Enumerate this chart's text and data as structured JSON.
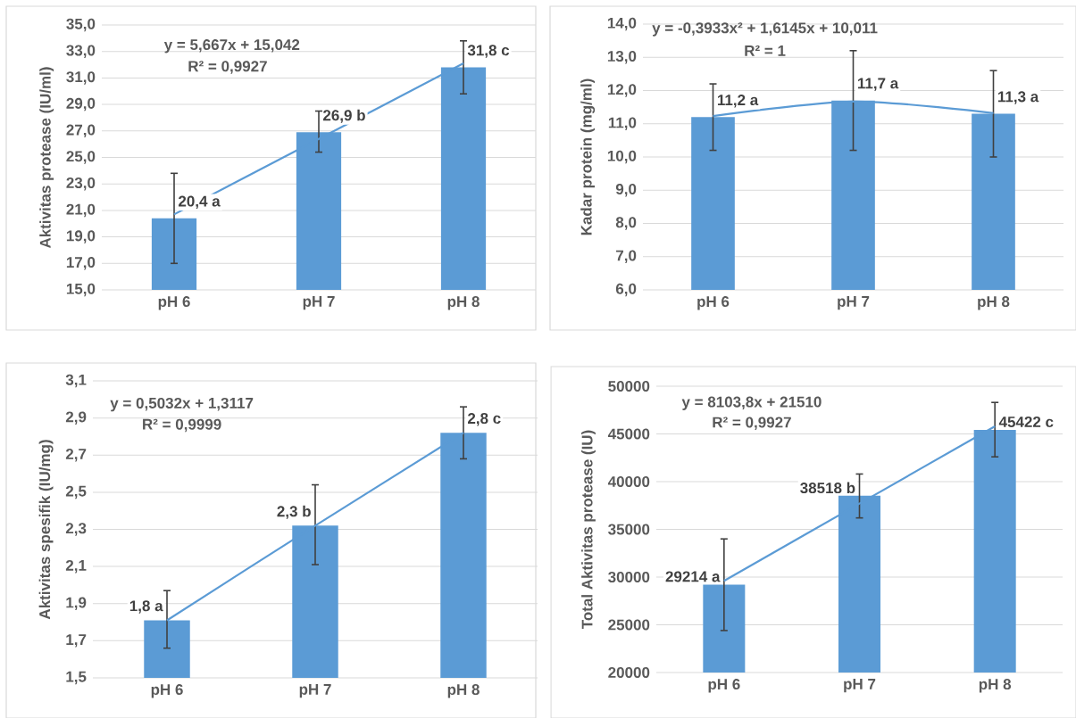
{
  "chart_data": [
    {
      "type": "bar",
      "ylabel": "Aktivitas protease (IU/ml)",
      "categories": [
        "pH 6",
        "pH 7",
        "pH 8"
      ],
      "ylim": [
        15,
        35
      ],
      "yticks": [
        {
          "value": 15,
          "label": "15,0"
        },
        {
          "value": 17,
          "label": "17,0"
        },
        {
          "value": 19,
          "label": "19,0"
        },
        {
          "value": 21,
          "label": "21,0"
        },
        {
          "value": 23,
          "label": "23,0"
        },
        {
          "value": 25,
          "label": "25,0"
        },
        {
          "value": 27,
          "label": "27,0"
        },
        {
          "value": 29,
          "label": "29,0"
        },
        {
          "value": 31,
          "label": "31,0"
        },
        {
          "value": 33,
          "label": "33,0"
        },
        {
          "value": 35,
          "label": "35,0"
        }
      ],
      "grid": "y",
      "annotations": [
        "y = 5,667x + 15,042",
        "R² = 0,9927"
      ],
      "series": [
        {
          "color": "#5b9bd5",
          "values": [
            20.4,
            26.9,
            31.8
          ],
          "errors": [
            [
              17.0,
              23.8
            ],
            [
              25.4,
              28.5
            ],
            [
              29.8,
              33.8
            ]
          ],
          "value_labels": [
            "20,4 a",
            "26,9 b",
            "31,8 c"
          ]
        },
        {
          "type": "line",
          "color": "#5b9bd5",
          "x": [
            "pH 6",
            "pH 7",
            "pH 8"
          ],
          "values": [
            20.7,
            26.4,
            32.1
          ]
        }
      ]
    },
    {
      "type": "bar",
      "ylabel": "Kadar protein (mg/ml)",
      "categories": [
        "pH 6",
        "pH 7",
        "pH 8"
      ],
      "ylim": [
        6,
        14
      ],
      "yticks": [
        {
          "value": 6,
          "label": "6,0"
        },
        {
          "value": 7,
          "label": "7,0"
        },
        {
          "value": 8,
          "label": "8,0"
        },
        {
          "value": 9,
          "label": "9,0"
        },
        {
          "value": 10,
          "label": "10,0"
        },
        {
          "value": 11,
          "label": "11,0"
        },
        {
          "value": 12,
          "label": "12,0"
        },
        {
          "value": 13,
          "label": "13,0"
        },
        {
          "value": 14,
          "label": "14,0"
        }
      ],
      "grid": "y",
      "annotations": [
        "y = -0,3933x² + 1,6145x + 10,011",
        "R² = 1"
      ],
      "series": [
        {
          "color": "#5b9bd5",
          "values": [
            11.2,
            11.7,
            11.3
          ],
          "errors": [
            [
              10.2,
              12.2
            ],
            [
              10.2,
              13.2
            ],
            [
              10.0,
              12.6
            ]
          ],
          "value_labels": [
            "11,2 a",
            "11,7 a",
            "11,3 a"
          ]
        },
        {
          "type": "line",
          "color": "#5b9bd5",
          "x": [
            "pH 6",
            "pH 7",
            "pH 8"
          ],
          "values": [
            11.23,
            11.67,
            11.32
          ]
        }
      ]
    },
    {
      "type": "bar",
      "ylabel": "Aktivitas spesifik (IU/mg)",
      "categories": [
        "pH 6",
        "pH 7",
        "pH 8"
      ],
      "ylim": [
        1.5,
        3.1
      ],
      "yticks": [
        {
          "value": 1.5,
          "label": "1,5"
        },
        {
          "value": 1.7,
          "label": "1,7"
        },
        {
          "value": 1.9,
          "label": "1,9"
        },
        {
          "value": 2.1,
          "label": "2,1"
        },
        {
          "value": 2.3,
          "label": "2,3"
        },
        {
          "value": 2.5,
          "label": "2,5"
        },
        {
          "value": 2.7,
          "label": "2,7"
        },
        {
          "value": 2.9,
          "label": "2,9"
        },
        {
          "value": 3.1,
          "label": "3,1"
        }
      ],
      "grid": "y",
      "annotations": [
        "y = 0,5032x + 1,3117",
        "R² = 0,9999"
      ],
      "series": [
        {
          "color": "#5b9bd5",
          "values": [
            1.81,
            2.32,
            2.82
          ],
          "errors": [
            [
              1.66,
              1.97
            ],
            [
              2.11,
              2.54
            ],
            [
              2.68,
              2.96
            ]
          ],
          "value_labels": [
            "1,8 a",
            "2,3 b",
            "2,8 c"
          ]
        },
        {
          "type": "line",
          "color": "#5b9bd5",
          "x": [
            "pH 6",
            "pH 7",
            "pH 8"
          ],
          "values": [
            1.81,
            2.32,
            2.82
          ]
        }
      ]
    },
    {
      "type": "bar",
      "ylabel": "Total Aktivitas protease (IU)",
      "categories": [
        "pH 6",
        "pH 7",
        "pH 8"
      ],
      "ylim": [
        20000,
        50000
      ],
      "yticks": [
        20000,
        25000,
        30000,
        35000,
        40000,
        45000,
        50000
      ],
      "grid": "y",
      "annotations": [
        "y = 8103,8x + 21510",
        "R² = 0,9927"
      ],
      "series": [
        {
          "color": "#5b9bd5",
          "values": [
            29214,
            38518,
            45422
          ],
          "errors": [
            [
              24400,
              34000
            ],
            [
              36200,
              40800
            ],
            [
              42600,
              48300
            ]
          ],
          "value_labels": [
            "29214 a",
            "38518 b",
            "45422 c"
          ]
        },
        {
          "type": "line",
          "color": "#5b9bd5",
          "x": [
            "pH 6",
            "pH 7",
            "pH 8"
          ],
          "values": [
            29600,
            37700,
            45800
          ]
        }
      ]
    }
  ]
}
